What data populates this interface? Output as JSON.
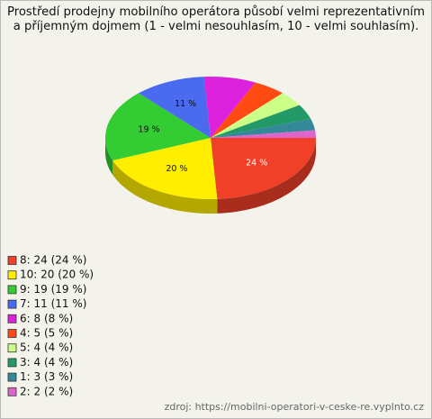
{
  "chart_data": {
    "type": "pie",
    "title": "Prostředí prodejny mobilního operátora působí velmi reprezentativním a příjemným dojmem (1 - velmi nesouhlasím, 10 - velmi souhlasím).",
    "categories": [
      "8",
      "10",
      "9",
      "7",
      "6",
      "4",
      "5",
      "3",
      "1",
      "2"
    ],
    "values": [
      24,
      20,
      19,
      11,
      8,
      5,
      4,
      4,
      3,
      2
    ],
    "value_labels": [
      "24 %",
      "20 %",
      "19 %",
      "11 %",
      null,
      null,
      null,
      null,
      null,
      null
    ],
    "legend": [
      "8: 24 (24 %)",
      "10: 20 (20 %)",
      "9: 19 (19 %)",
      "7: 11 (11 %)",
      "6: 8 (8 %)",
      "4: 5 (5 %)",
      "5: 4 (4 %)",
      "3: 4 (4 %)",
      "1: 3 (3 %)",
      "2: 2 (2 %)"
    ],
    "colors": [
      "#f04028",
      "#ffee00",
      "#33cc33",
      "#4a6af0",
      "#dd22dd",
      "#ff4a14",
      "#ccff88",
      "#229966",
      "#338899",
      "#dd66cc"
    ],
    "source": "zdroj: https://mobilni-operatori-v-ceske-re.vyplnto.cz"
  }
}
